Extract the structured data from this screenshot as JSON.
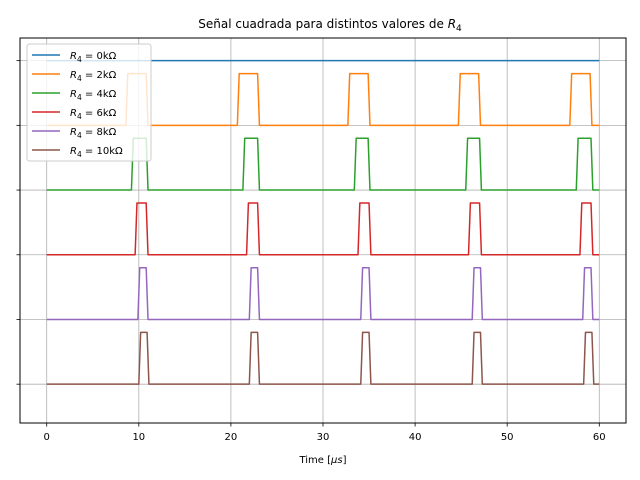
{
  "chart_data": {
    "type": "line",
    "title": "Señal cuadrada para distintos valores de R₄",
    "title_main": "Señal cuadrada para distintos valores de ",
    "title_symbol": "R",
    "title_subscript": "4",
    "xlabel_main": "Time [",
    "xlabel_symbol": "μs",
    "xlabel_end": "]",
    "xlim": [
      -2.9,
      62.9
    ],
    "ylim": [
      -0.6,
      5.35
    ],
    "x_ticks": [
      0,
      10,
      20,
      30,
      40,
      50,
      60
    ],
    "y_ticks": [
      0,
      1,
      2,
      3,
      4,
      5
    ],
    "grid": true,
    "legend": {
      "placement": "top-left"
    },
    "series": [
      {
        "name": "R₄ = 0kΩ",
        "label_symbol": "R",
        "label_subscript": "4",
        "label_rest": " = 0kΩ",
        "color": "#1f77b4",
        "x": [
          0,
          60
        ],
        "y": [
          5,
          5
        ]
      },
      {
        "name": "R₄ = 2kΩ",
        "label_symbol": "R",
        "label_subscript": "4",
        "label_rest": " = 2kΩ",
        "color": "#ff7f0e",
        "x": [
          0,
          8.6,
          8.8,
          10.8,
          11.0,
          20.7,
          20.9,
          22.9,
          23.1,
          32.7,
          32.9,
          34.9,
          35.1,
          44.7,
          44.9,
          46.9,
          47.1,
          56.8,
          57.0,
          59.0,
          59.2,
          60
        ],
        "y": [
          4,
          4,
          4.8,
          4.8,
          4,
          4,
          4.8,
          4.8,
          4,
          4,
          4.8,
          4.8,
          4,
          4,
          4.8,
          4.8,
          4,
          4,
          4.8,
          4.8,
          4,
          4
        ]
      },
      {
        "name": "R₄ = 4kΩ",
        "label_symbol": "R",
        "label_subscript": "4",
        "label_rest": " = 4kΩ",
        "color": "#2ca02c",
        "x": [
          0,
          9.2,
          9.4,
          10.8,
          11.0,
          21.3,
          21.5,
          22.9,
          23.1,
          33.4,
          33.6,
          34.9,
          35.1,
          45.5,
          45.7,
          47.0,
          47.2,
          57.5,
          57.7,
          59.1,
          59.3,
          60
        ],
        "y": [
          3,
          3,
          3.8,
          3.8,
          3,
          3,
          3.8,
          3.8,
          3,
          3,
          3.8,
          3.8,
          3,
          3,
          3.8,
          3.8,
          3,
          3,
          3.8,
          3.8,
          3,
          3
        ]
      },
      {
        "name": "R₄ = 6kΩ",
        "label_symbol": "R",
        "label_subscript": "4",
        "label_rest": " = 6kΩ",
        "color": "#d62728",
        "x": [
          0,
          9.6,
          9.8,
          10.8,
          11.0,
          21.7,
          21.9,
          22.9,
          23.1,
          33.8,
          34.0,
          35.0,
          35.2,
          45.8,
          46.0,
          47.0,
          47.2,
          57.9,
          58.1,
          59.1,
          59.3,
          60
        ],
        "y": [
          2,
          2,
          2.8,
          2.8,
          2,
          2,
          2.8,
          2.8,
          2,
          2,
          2.8,
          2.8,
          2,
          2,
          2.8,
          2.8,
          2,
          2,
          2.8,
          2.8,
          2,
          2
        ]
      },
      {
        "name": "R₄ = 8kΩ",
        "label_symbol": "R",
        "label_subscript": "4",
        "label_rest": " = 8kΩ",
        "color": "#9467bd",
        "x": [
          0,
          9.9,
          10.1,
          10.8,
          11.0,
          22.0,
          22.2,
          22.9,
          23.1,
          34.1,
          34.3,
          35.0,
          35.2,
          46.2,
          46.4,
          47.1,
          47.3,
          58.2,
          58.4,
          59.1,
          59.3,
          60
        ],
        "y": [
          1,
          1,
          1.8,
          1.8,
          1,
          1,
          1.8,
          1.8,
          1,
          1,
          1.8,
          1.8,
          1,
          1,
          1.8,
          1.8,
          1,
          1,
          1.8,
          1.8,
          1,
          1
        ]
      },
      {
        "name": "R₄ = 10kΩ",
        "label_symbol": "R",
        "label_subscript": "4",
        "label_rest": " = 10kΩ",
        "color": "#8c564b",
        "x": [
          0,
          10.0,
          10.2,
          10.9,
          11.1,
          22.0,
          22.2,
          22.9,
          23.1,
          34.1,
          34.3,
          35.0,
          35.2,
          46.2,
          46.4,
          47.1,
          47.3,
          58.3,
          58.5,
          59.2,
          59.4,
          60
        ],
        "y": [
          0,
          0,
          0.8,
          0.8,
          0,
          0,
          0.8,
          0.8,
          0,
          0,
          0.8,
          0.8,
          0,
          0,
          0.8,
          0.8,
          0,
          0,
          0.8,
          0.8,
          0,
          0
        ]
      }
    ]
  }
}
